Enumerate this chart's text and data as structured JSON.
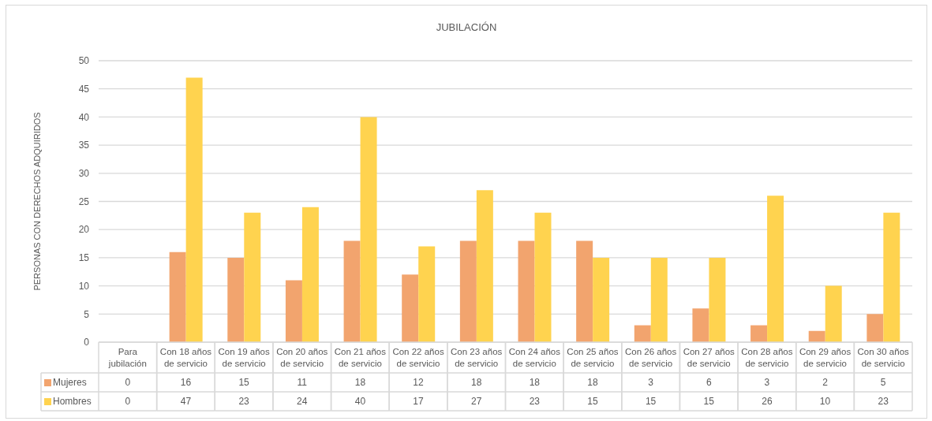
{
  "chart_data": {
    "type": "bar",
    "title": "JUBILACIÓN",
    "ylabel": "PERSONAS CON DERECHOS ADQUIRIDOS",
    "categories": [
      "Para jubilación",
      "Con 18 años de servicio",
      "Con 19 años de servicio",
      "Con 20 años de servicio",
      "Con 21 años de servicio",
      "Con 22 años de servicio",
      "Con 23 años de servicio",
      "Con 24 años de servicio",
      "Con 25 años de servicio",
      "Con 26 años de servicio",
      "Con 27 años de servicio",
      "Con 28 años de servicio",
      "Con 29 años de servicio",
      "Con 30 años de servicio"
    ],
    "series": [
      {
        "name": "Mujeres",
        "color": "#f2a46e",
        "values": [
          0,
          16,
          15,
          11,
          18,
          12,
          18,
          18,
          18,
          3,
          6,
          3,
          2,
          5
        ]
      },
      {
        "name": "Hombres",
        "color": "#ffd34f",
        "values": [
          0,
          47,
          23,
          24,
          40,
          17,
          27,
          23,
          15,
          15,
          15,
          26,
          10,
          23
        ]
      }
    ],
    "ylim": [
      0,
      50
    ],
    "yticks": [
      0,
      5,
      10,
      15,
      20,
      25,
      30,
      35,
      40,
      45,
      50
    ],
    "grid": "y",
    "legend": "bottom",
    "data_labels": true
  }
}
